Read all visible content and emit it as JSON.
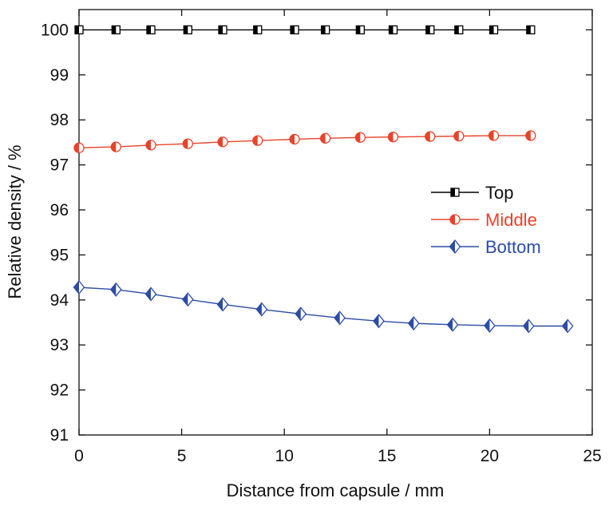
{
  "chart_data": {
    "type": "line",
    "title": "",
    "xlabel": "Distance from capsule / mm",
    "ylabel": "Relative density / %",
    "xlim": [
      0,
      25
    ],
    "ylim": [
      91,
      100.5
    ],
    "x_ticks": [
      "0",
      "5",
      "10",
      "15",
      "20",
      "25"
    ],
    "y_ticks": [
      "91",
      "92",
      "93",
      "94",
      "95",
      "96",
      "97",
      "98",
      "99",
      "100"
    ],
    "grid": false,
    "legend_position": "right",
    "series": [
      {
        "name": "Top",
        "color": "#000000",
        "marker": "half-filled-square",
        "x": [
          0,
          1.8,
          3.5,
          5.3,
          7.0,
          8.7,
          10.5,
          12.0,
          13.7,
          15.3,
          17.1,
          18.5,
          20.2,
          22.0
        ],
        "y": [
          100,
          100,
          100,
          100,
          100,
          100,
          100,
          100,
          100,
          100,
          100,
          100,
          100,
          100
        ]
      },
      {
        "name": "Middle",
        "color": "#e8432a",
        "marker": "half-filled-circle",
        "x": [
          0,
          1.8,
          3.5,
          5.3,
          7.0,
          8.7,
          10.5,
          12.0,
          13.7,
          15.3,
          17.1,
          18.5,
          20.2,
          22.0
        ],
        "y": [
          97.38,
          97.4,
          97.44,
          97.47,
          97.51,
          97.54,
          97.57,
          97.59,
          97.61,
          97.62,
          97.63,
          97.64,
          97.65,
          97.65
        ]
      },
      {
        "name": "Bottom",
        "color": "#2b4ba6",
        "marker": "half-filled-diamond",
        "x": [
          0,
          1.8,
          3.5,
          5.3,
          7.0,
          8.9,
          10.8,
          12.7,
          14.6,
          16.3,
          18.2,
          20.0,
          21.9,
          23.8
        ],
        "y": [
          94.28,
          94.23,
          94.13,
          94.01,
          93.9,
          93.79,
          93.69,
          93.6,
          93.53,
          93.48,
          93.45,
          93.43,
          93.42,
          93.42
        ]
      }
    ]
  }
}
